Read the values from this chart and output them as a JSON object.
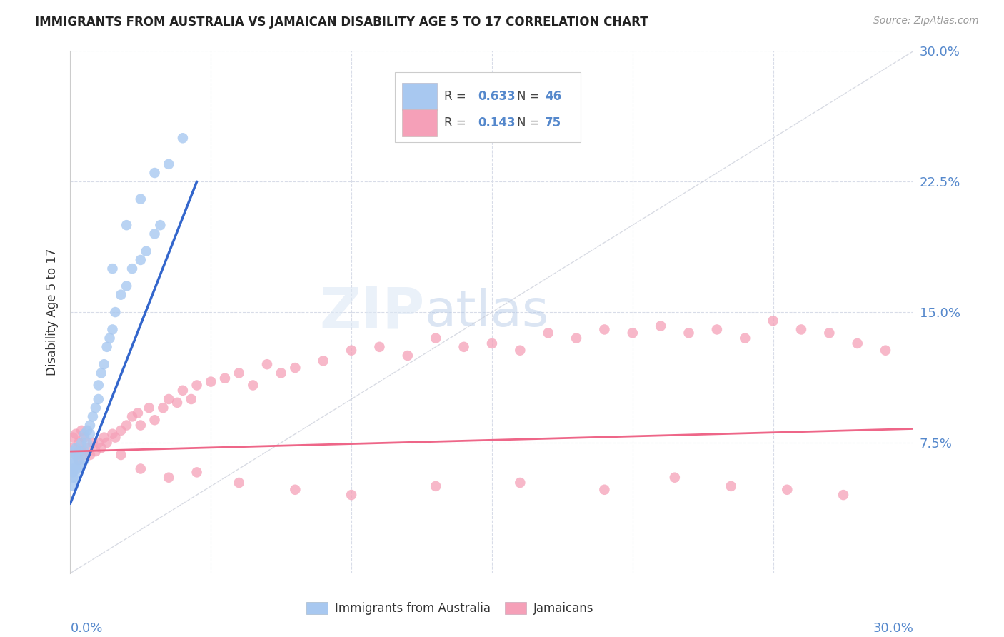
{
  "title": "IMMIGRANTS FROM AUSTRALIA VS JAMAICAN DISABILITY AGE 5 TO 17 CORRELATION CHART",
  "source": "Source: ZipAtlas.com",
  "ylabel": "Disability Age 5 to 17",
  "ytick_values": [
    0.0,
    0.075,
    0.15,
    0.225,
    0.3
  ],
  "ytick_labels": [
    "",
    "7.5%",
    "15.0%",
    "22.5%",
    "30.0%"
  ],
  "xlim": [
    0.0,
    0.3
  ],
  "ylim": [
    0.0,
    0.3
  ],
  "color_australia": "#a8c8f0",
  "color_jamaica": "#f5a0b8",
  "color_trend_australia": "#3366cc",
  "color_trend_jamaica": "#ee6688",
  "color_diag": "#c8ccd8",
  "color_tick_label": "#5588cc",
  "watermark_text": "ZIPatlas",
  "legend_r1": "0.633",
  "legend_n1": "46",
  "legend_r2": "0.143",
  "legend_n2": "75",
  "aus_x": [
    0.001,
    0.001,
    0.001,
    0.001,
    0.001,
    0.001,
    0.001,
    0.002,
    0.002,
    0.002,
    0.002,
    0.003,
    0.003,
    0.003,
    0.004,
    0.004,
    0.005,
    0.005,
    0.005,
    0.006,
    0.006,
    0.007,
    0.007,
    0.008,
    0.009,
    0.01,
    0.01,
    0.011,
    0.012,
    0.013,
    0.014,
    0.015,
    0.016,
    0.018,
    0.02,
    0.022,
    0.025,
    0.027,
    0.03,
    0.032,
    0.015,
    0.02,
    0.025,
    0.03,
    0.035,
    0.04
  ],
  "aus_y": [
    0.05,
    0.055,
    0.058,
    0.06,
    0.063,
    0.065,
    0.07,
    0.055,
    0.06,
    0.068,
    0.072,
    0.06,
    0.065,
    0.07,
    0.062,
    0.075,
    0.065,
    0.07,
    0.08,
    0.075,
    0.082,
    0.08,
    0.085,
    0.09,
    0.095,
    0.1,
    0.108,
    0.115,
    0.12,
    0.13,
    0.135,
    0.14,
    0.15,
    0.16,
    0.165,
    0.175,
    0.18,
    0.185,
    0.195,
    0.2,
    0.175,
    0.2,
    0.215,
    0.23,
    0.235,
    0.25
  ],
  "jam_x": [
    0.001,
    0.001,
    0.002,
    0.002,
    0.003,
    0.003,
    0.004,
    0.004,
    0.005,
    0.005,
    0.006,
    0.007,
    0.008,
    0.009,
    0.01,
    0.011,
    0.012,
    0.013,
    0.015,
    0.016,
    0.018,
    0.02,
    0.022,
    0.024,
    0.025,
    0.028,
    0.03,
    0.033,
    0.035,
    0.038,
    0.04,
    0.043,
    0.045,
    0.05,
    0.055,
    0.06,
    0.065,
    0.07,
    0.075,
    0.08,
    0.09,
    0.1,
    0.11,
    0.12,
    0.13,
    0.14,
    0.15,
    0.16,
    0.17,
    0.18,
    0.19,
    0.2,
    0.21,
    0.22,
    0.23,
    0.24,
    0.25,
    0.26,
    0.27,
    0.28,
    0.29,
    0.018,
    0.025,
    0.035,
    0.045,
    0.06,
    0.08,
    0.1,
    0.13,
    0.16,
    0.19,
    0.215,
    0.235,
    0.255,
    0.275
  ],
  "jam_y": [
    0.072,
    0.078,
    0.068,
    0.08,
    0.065,
    0.075,
    0.07,
    0.082,
    0.068,
    0.078,
    0.072,
    0.068,
    0.075,
    0.07,
    0.075,
    0.072,
    0.078,
    0.075,
    0.08,
    0.078,
    0.082,
    0.085,
    0.09,
    0.092,
    0.085,
    0.095,
    0.088,
    0.095,
    0.1,
    0.098,
    0.105,
    0.1,
    0.108,
    0.11,
    0.112,
    0.115,
    0.108,
    0.12,
    0.115,
    0.118,
    0.122,
    0.128,
    0.13,
    0.125,
    0.135,
    0.13,
    0.132,
    0.128,
    0.138,
    0.135,
    0.14,
    0.138,
    0.142,
    0.138,
    0.14,
    0.135,
    0.145,
    0.14,
    0.138,
    0.132,
    0.128,
    0.068,
    0.06,
    0.055,
    0.058,
    0.052,
    0.048,
    0.045,
    0.05,
    0.052,
    0.048,
    0.055,
    0.05,
    0.048,
    0.045
  ]
}
